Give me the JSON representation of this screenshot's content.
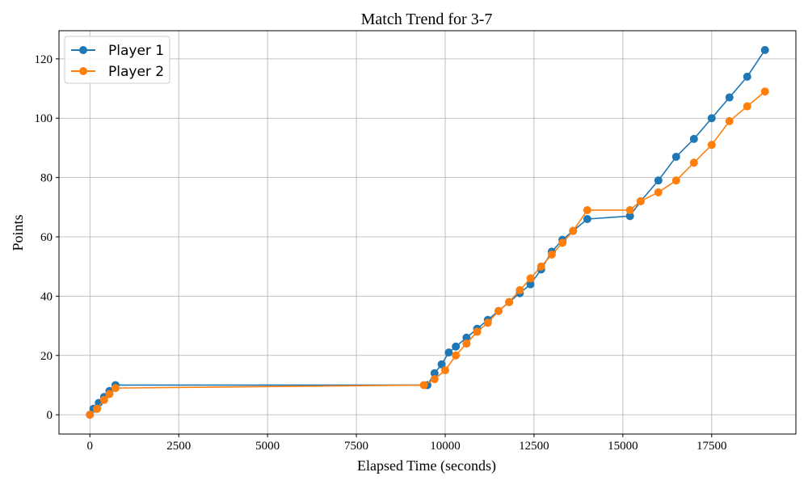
{
  "chart_data": {
    "type": "line",
    "title": "Match Trend for 3-7",
    "xlabel": "Elapsed Time (seconds)",
    "ylabel": "Points",
    "xlim": [
      -870,
      19870
    ],
    "ylim": [
      -6.5,
      129.5
    ],
    "x_ticks": [
      0,
      2500,
      5000,
      7500,
      10000,
      12500,
      15000,
      17500
    ],
    "y_ticks": [
      0,
      20,
      40,
      60,
      80,
      100,
      120
    ],
    "x_tick_labels": [
      "0",
      "2500",
      "5000",
      "7500",
      "10000",
      "12500",
      "15000",
      "17500"
    ],
    "y_tick_labels": [
      "0",
      "20",
      "40",
      "60",
      "80",
      "100",
      "120"
    ],
    "grid": true,
    "legend_position": "top-left",
    "series": [
      {
        "name": "Player 1",
        "color": "#1f77b4",
        "marker": "circle",
        "anchors": [
          [
            0,
            0
          ],
          [
            100,
            2
          ],
          [
            250,
            4
          ],
          [
            400,
            6
          ],
          [
            550,
            8
          ],
          [
            720,
            10
          ],
          [
            9500,
            10
          ],
          [
            9700,
            14
          ],
          [
            9900,
            17
          ],
          [
            10100,
            21
          ],
          [
            10300,
            23
          ],
          [
            10600,
            26
          ],
          [
            10900,
            29
          ],
          [
            11200,
            32
          ],
          [
            11500,
            35
          ],
          [
            11800,
            38
          ],
          [
            12100,
            41
          ],
          [
            12400,
            44
          ],
          [
            12700,
            49
          ],
          [
            13000,
            55
          ],
          [
            13300,
            59
          ],
          [
            13600,
            62
          ],
          [
            14000,
            66
          ],
          [
            15200,
            67
          ],
          [
            15500,
            72
          ],
          [
            16000,
            79
          ],
          [
            16500,
            87
          ],
          [
            17000,
            93
          ],
          [
            17500,
            100
          ],
          [
            18000,
            107
          ],
          [
            18500,
            114
          ],
          [
            19000,
            123
          ]
        ]
      },
      {
        "name": "Player 2",
        "color": "#ff7f0e",
        "marker": "circle",
        "anchors": [
          [
            0,
            0
          ],
          [
            200,
            2
          ],
          [
            400,
            5
          ],
          [
            550,
            7
          ],
          [
            720,
            9
          ],
          [
            9400,
            10
          ],
          [
            9700,
            12
          ],
          [
            10000,
            15
          ],
          [
            10300,
            20
          ],
          [
            10600,
            24
          ],
          [
            10900,
            28
          ],
          [
            11200,
            31
          ],
          [
            11500,
            35
          ],
          [
            11800,
            38
          ],
          [
            12100,
            42
          ],
          [
            12400,
            46
          ],
          [
            12700,
            50
          ],
          [
            13000,
            54
          ],
          [
            13300,
            58
          ],
          [
            13600,
            62
          ],
          [
            14000,
            69
          ],
          [
            15200,
            69
          ],
          [
            15500,
            72
          ],
          [
            16000,
            75
          ],
          [
            16500,
            79
          ],
          [
            17000,
            85
          ],
          [
            17500,
            91
          ],
          [
            18000,
            99
          ],
          [
            18500,
            104
          ],
          [
            19000,
            109
          ]
        ]
      }
    ]
  }
}
